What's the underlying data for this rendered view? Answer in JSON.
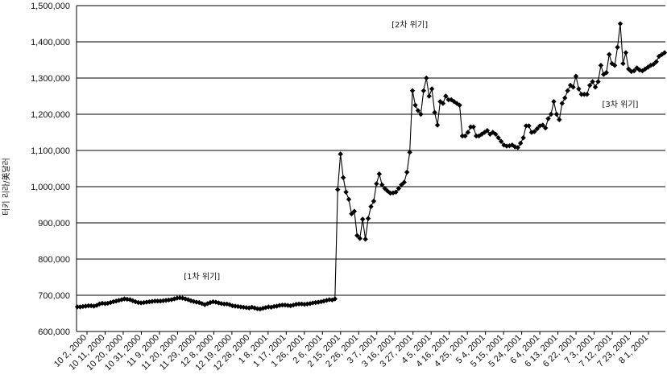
{
  "chart_data": {
    "type": "line",
    "title": "",
    "xlabel": "",
    "ylabel": "터키 리라/美달러",
    "ylim": [
      600000,
      1500000
    ],
    "yticks": [
      600000,
      700000,
      800000,
      900000,
      1000000,
      1100000,
      1200000,
      1300000,
      1400000,
      1500000
    ],
    "ytick_labels": [
      "600,000",
      "700,000",
      "800,000",
      "900,000",
      "1,000,000",
      "1,100,000",
      "1,200,000",
      "1,300,000",
      "1,400,000",
      "1,500,000"
    ],
    "xtick_labels": [
      "10 2, 2000",
      "10 11, 2000",
      "10 20, 2000",
      "10 31, 2000",
      "11 9, 2000",
      "11 20, 2000",
      "11 29, 2000",
      "12 8, 2000",
      "12 19, 2000",
      "12 28, 2000",
      "1 8, 2001",
      "1 17, 2001",
      "1 26, 2001",
      "2 6, 2001",
      "2 15, 2001",
      "2 26, 2001",
      "3 7, 2001",
      "3 16, 2001",
      "3 27, 2001",
      "4 5, 2001",
      "4 16, 2001",
      "4 25, 2001",
      "5 4, 2001",
      "5 15, 2001",
      "5 24, 2001",
      "6 4, 2001",
      "6 13, 2001",
      "6 22, 2001",
      "7 3, 2001",
      "7 12, 2001",
      "7 23, 2001",
      "8 1, 2001"
    ],
    "grid": true,
    "legend": "none",
    "marker": "diamond",
    "line_color": "#000000",
    "series": [
      {
        "values": [
          668000,
          668000,
          669000,
          670000,
          671000,
          671000,
          670000,
          672000,
          676000,
          678000,
          677000,
          678000,
          680000,
          682000,
          684000,
          686000,
          688000,
          690000,
          689000,
          688000,
          685000,
          682000,
          680000,
          679000,
          680000,
          681000,
          682000,
          683000,
          684000,
          684000,
          684000,
          685000,
          686000,
          687000,
          688000,
          690000,
          692000,
          693000,
          692000,
          690000,
          688000,
          685000,
          683000,
          681000,
          680000,
          677000,
          674000,
          677000,
          680000,
          682000,
          681000,
          679000,
          677000,
          676000,
          676000,
          674000,
          671000,
          670000,
          669000,
          668000,
          667000,
          666000,
          665000,
          667000,
          665000,
          663000,
          662000,
          664000,
          666000,
          668000,
          667000,
          669000,
          670000,
          672000,
          673000,
          673000,
          672000,
          671000,
          673000,
          675000,
          676000,
          676000,
          675000,
          676000,
          677000,
          679000,
          680000,
          681000,
          682000,
          684000,
          686000,
          688000,
          687000,
          690000,
          992000,
          1090000,
          1025000,
          985000,
          965000,
          925000,
          932000,
          865000,
          857000,
          910000,
          855000,
          912000,
          945000,
          960000,
          1008000,
          1035000,
          1005000,
          995000,
          988000,
          982000,
          983000,
          985000,
          995000,
          1005000,
          1012000,
          1040000,
          1095000,
          1265000,
          1225000,
          1210000,
          1200000,
          1265000,
          1300000,
          1250000,
          1270000,
          1205000,
          1170000,
          1235000,
          1230000,
          1250000,
          1240000,
          1240000,
          1235000,
          1230000,
          1225000,
          1140000,
          1140000,
          1150000,
          1165000,
          1165000,
          1140000,
          1140000,
          1145000,
          1150000,
          1155000,
          1145000,
          1150000,
          1145000,
          1135000,
          1125000,
          1115000,
          1112000,
          1113000,
          1115000,
          1110000,
          1108000,
          1120000,
          1135000,
          1168000,
          1168000,
          1150000,
          1152000,
          1160000,
          1168000,
          1170000,
          1162000,
          1188000,
          1200000,
          1235000,
          1200000,
          1185000,
          1230000,
          1245000,
          1265000,
          1280000,
          1275000,
          1305000,
          1270000,
          1255000,
          1255000,
          1255000,
          1280000,
          1290000,
          1275000,
          1290000,
          1335000,
          1310000,
          1315000,
          1365000,
          1340000,
          1335000,
          1385000,
          1450000,
          1340000,
          1370000,
          1325000,
          1318000,
          1320000,
          1328000,
          1322000,
          1320000,
          1325000,
          1330000,
          1335000,
          1338000,
          1345000,
          1360000,
          1365000,
          1370000
        ]
      }
    ],
    "annotations": [
      {
        "text": "[1차 위기]",
        "x_index": 45,
        "y": 745000
      },
      {
        "text": "[2차 위기]",
        "x_index": 120,
        "y": 1440000
      },
      {
        "text": "[3차 위기]",
        "x_index": 196,
        "y": 1220000
      }
    ]
  }
}
